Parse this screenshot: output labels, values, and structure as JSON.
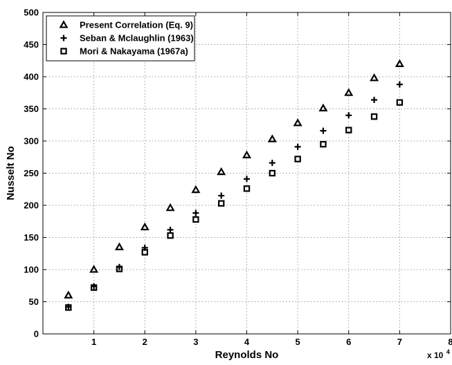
{
  "chart_data": {
    "type": "scatter",
    "title": "",
    "xlabel": "Reynolds No",
    "ylabel": "Nusselt No",
    "x_multiplier": "x 10",
    "x_multiplier_exponent": "4",
    "xlim": [
      0,
      8
    ],
    "ylim": [
      0,
      500
    ],
    "xticks": [
      1,
      2,
      3,
      4,
      5,
      6,
      7,
      8
    ],
    "yticks": [
      0,
      50,
      100,
      150,
      200,
      250,
      300,
      350,
      400,
      450,
      500
    ],
    "grid": true,
    "legend_position": "top-left",
    "x": [
      0.5,
      1,
      1.5,
      2,
      2.5,
      3,
      3.5,
      4,
      4.5,
      5,
      5.5,
      6,
      6.5,
      7
    ],
    "series": [
      {
        "name": "Present Correlation (Eq. 9)",
        "marker": "triangle",
        "values": [
          60,
          100,
          135,
          166,
          196,
          224,
          252,
          278,
          303,
          328,
          351,
          375,
          398,
          420
        ]
      },
      {
        "name": "Seban & Mclaughlin (1963)",
        "marker": "plus",
        "values": [
          42,
          74,
          104,
          134,
          162,
          188,
          215,
          241,
          266,
          291,
          316,
          340,
          364,
          388
        ]
      },
      {
        "name": "Mori & Nakayama (1967a)",
        "marker": "square",
        "values": [
          41,
          72,
          101,
          127,
          153,
          178,
          203,
          226,
          250,
          272,
          295,
          317,
          338,
          360
        ]
      }
    ]
  }
}
